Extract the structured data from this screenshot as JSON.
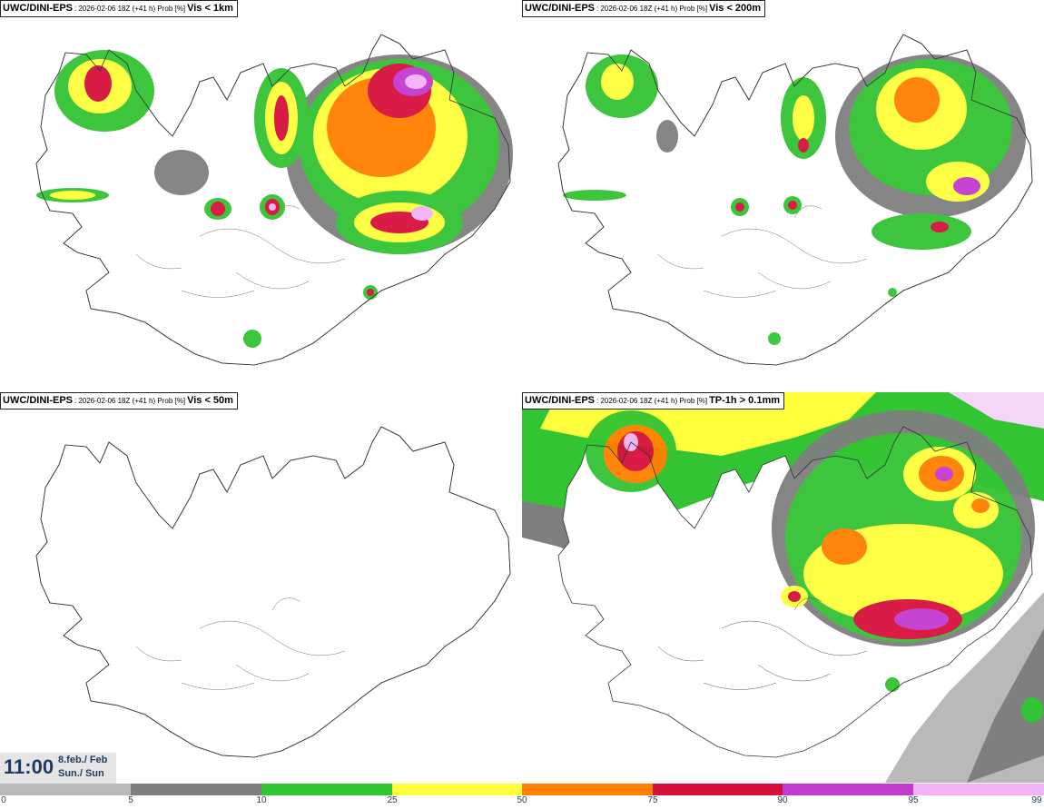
{
  "panels": [
    {
      "source": "UWC/DINI-EPS",
      "info": ": 2026-02-06 18Z (+41 h) Prob [%]",
      "variable": "Vis < 1km"
    },
    {
      "source": "UWC/DINI-EPS",
      "info": ": 2026-02-06 18Z (+41 h) Prob [%]",
      "variable": "Vis < 200m"
    },
    {
      "source": "UWC/DINI-EPS",
      "info": ": 2026-02-06 18Z (+41 h) Prob [%]",
      "variable": "Vis < 50m"
    },
    {
      "source": "UWC/DINI-EPS",
      "info": ": 2026-02-06 18Z (+41 h) Prob [%]",
      "variable": "TP-1h > 0.1mm"
    }
  ],
  "valid_time": {
    "time": "11:00",
    "date_line1": "8.feb./ Feb",
    "date_line2": "Sun./ Sun"
  },
  "legend": {
    "ticks": [
      "0",
      "5",
      "10",
      "25",
      "50",
      "75",
      "90",
      "95",
      "99"
    ],
    "colors": [
      "#ffffff",
      "#b9b9b9",
      "#7f7f7f",
      "#33c433",
      "#ffff3d",
      "#ff7f00",
      "#d6103c",
      "#c23bd0",
      "#f2b2f5"
    ]
  }
}
